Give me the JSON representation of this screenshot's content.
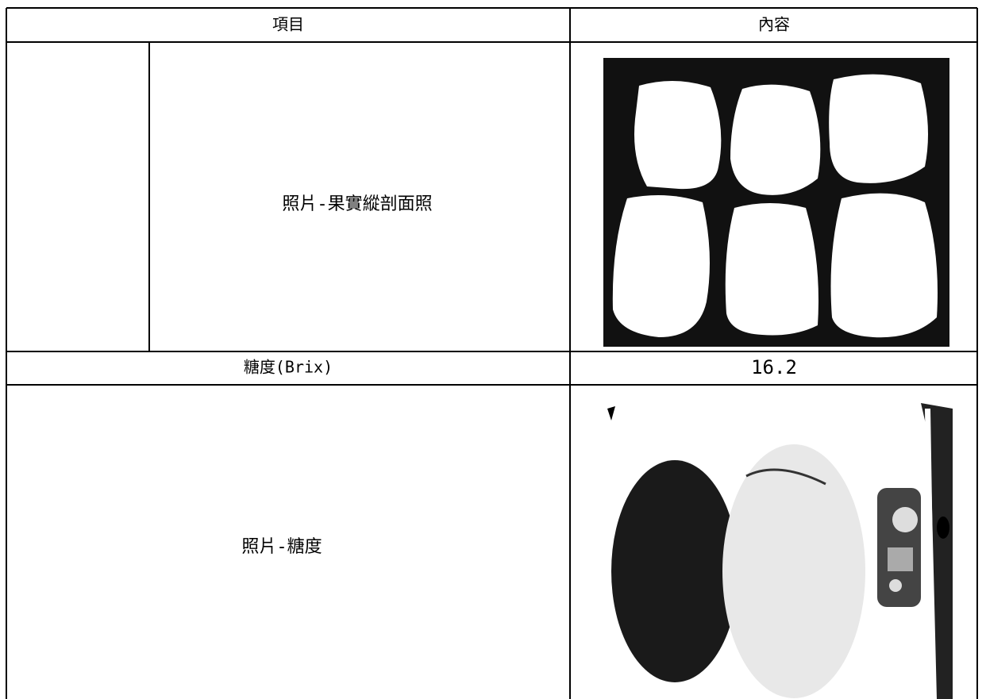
{
  "table": {
    "header": [
      "項目",
      "內容"
    ],
    "rows": [
      {
        "item": "照片-果實縱剖面照"
      },
      {
        "item": "糖度(Brix)",
        "content": "16.2"
      },
      {
        "item": "照片-糖度"
      }
    ]
  }
}
